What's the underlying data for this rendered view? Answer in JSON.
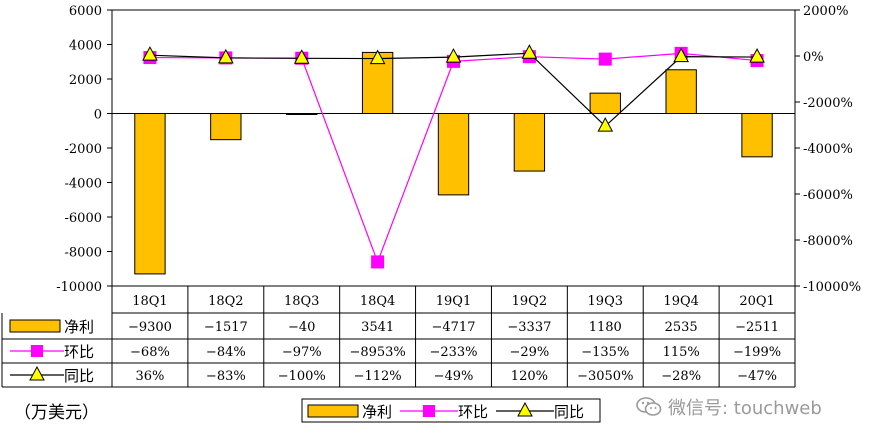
{
  "unit_label": "（万美元）",
  "watermark": {
    "text": "微信号: touchweb",
    "icon": "wechat-icon"
  },
  "colors": {
    "bar": "#FFC000",
    "bar_edge": "#000000",
    "qoq": "#FF00FF",
    "yoy_line": "#000000",
    "yoy_marker": "#FFFF00"
  },
  "chart_data": {
    "type": "bar",
    "title": "",
    "categories": [
      "18Q1",
      "18Q2",
      "18Q3",
      "18Q4",
      "19Q1",
      "19Q2",
      "19Q3",
      "19Q4",
      "20Q1"
    ],
    "left_axis": {
      "min": -10000,
      "max": 6000,
      "step": 2000,
      "ticks": [
        "6000",
        "4000",
        "2000",
        "0",
        "-2000",
        "-4000",
        "-6000",
        "-8000",
        "-10000"
      ]
    },
    "right_axis": {
      "min": -10000,
      "max": 2000,
      "step": 2000,
      "ticks": [
        "2000%",
        "0%",
        "-2000%",
        "-4000%",
        "-6000%",
        "-8000%",
        "-10000%"
      ]
    },
    "legend_position": "bottom-center",
    "grid": false,
    "series": [
      {
        "name": "净利",
        "type": "bar",
        "axis": "left",
        "values": [
          -9300,
          -1517,
          -40,
          3541,
          -4717,
          -3337,
          1180,
          2535,
          -2511
        ],
        "labels": [
          "-9300",
          "-1517",
          "-40",
          "3541",
          "-4717",
          "-3337",
          "1180",
          "2535",
          "-2511"
        ]
      },
      {
        "name": "环比",
        "type": "line",
        "axis": "right",
        "marker": "square",
        "values": [
          -68,
          -84,
          -97,
          -8953,
          -233,
          -29,
          -135,
          115,
          -199
        ],
        "labels": [
          "-68%",
          "-84%",
          "-97%",
          "-8953%",
          "-233%",
          "-29%",
          "-135%",
          "115%",
          "-199%"
        ]
      },
      {
        "name": "同比",
        "type": "line",
        "axis": "right",
        "marker": "triangle",
        "values": [
          36,
          -83,
          -100,
          -112,
          -49,
          120,
          -3050,
          -28,
          -47
        ],
        "labels": [
          "36%",
          "-83%",
          "-100%",
          "-112%",
          "-49%",
          "120%",
          "-3050%",
          "-28%",
          "-47%"
        ]
      }
    ]
  }
}
